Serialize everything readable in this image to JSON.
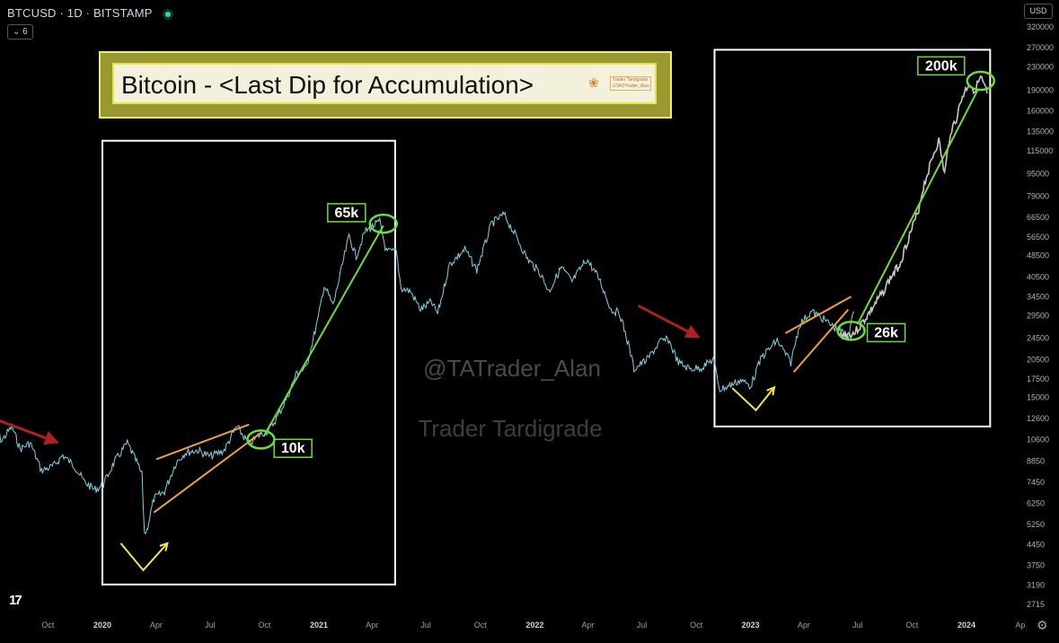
{
  "header": {
    "symbol_line": "BTCUSD · 1D · BITSTAMP",
    "indicators_count": "6",
    "currency": "USD"
  },
  "title": {
    "text": "Bitcoin - <Last Dip for Accumulation>",
    "brand_name": "Trader Tardigrade",
    "brand_tagline": "UTAOTrader_Alan"
  },
  "watermarks": {
    "handle": "@TATrader_Alan",
    "name": "Trader Tardigrade"
  },
  "labels": {
    "l65k": "65k",
    "l10k": "10k",
    "l200k": "200k",
    "l26k": "26k"
  },
  "colors": {
    "background": "#000000",
    "price_line": "#7fd4e6",
    "projection": "#c8c8c8",
    "green": "#6fdc3c",
    "orange": "#f0a040",
    "yellow": "#f4e44a",
    "red_arrow": "#b02020",
    "box": "#ffffff"
  },
  "chart_data": {
    "type": "line",
    "symbol": "BTCUSD",
    "interval": "1D",
    "exchange": "BITSTAMP",
    "y_scale": "log",
    "ylim": [
      2715,
      320000
    ],
    "y_ticks": [
      2715,
      3190,
      3750,
      4450,
      5250,
      6250,
      7450,
      8850,
      10600,
      12600,
      15000,
      17500,
      20500,
      24500,
      29500,
      34500,
      40500,
      48500,
      56500,
      66500,
      79000,
      95000,
      115000,
      135000,
      160000,
      190000,
      230000,
      270000,
      320000
    ],
    "x_ticks": [
      {
        "date": "2019-10-01",
        "label": "Oct"
      },
      {
        "date": "2020-01-01",
        "label": "2020"
      },
      {
        "date": "2020-04-01",
        "label": "Apr"
      },
      {
        "date": "2020-07-01",
        "label": "Jul"
      },
      {
        "date": "2020-10-01",
        "label": "Oct"
      },
      {
        "date": "2021-01-01",
        "label": "2021"
      },
      {
        "date": "2021-04-01",
        "label": "Apr"
      },
      {
        "date": "2021-07-01",
        "label": "Jul"
      },
      {
        "date": "2021-10-01",
        "label": "Oct"
      },
      {
        "date": "2022-01-01",
        "label": "2022"
      },
      {
        "date": "2022-04-01",
        "label": "Apr"
      },
      {
        "date": "2022-07-01",
        "label": "Jul"
      },
      {
        "date": "2022-10-01",
        "label": "Oct"
      },
      {
        "date": "2023-01-01",
        "label": "2023"
      },
      {
        "date": "2023-04-01",
        "label": "Apr"
      },
      {
        "date": "2023-07-01",
        "label": "Jul"
      },
      {
        "date": "2023-10-01",
        "label": "Oct"
      },
      {
        "date": "2024-01-01",
        "label": "2024"
      },
      {
        "date": "2024-04-01",
        "label": "Ap"
      }
    ],
    "price_series": {
      "name": "BTCUSD",
      "x": [
        "2019-07-01",
        "2019-07-15",
        "2019-08-01",
        "2019-08-15",
        "2019-09-01",
        "2019-09-20",
        "2019-10-10",
        "2019-10-26",
        "2019-11-15",
        "2019-12-01",
        "2019-12-18",
        "2020-01-01",
        "2020-01-20",
        "2020-02-12",
        "2020-02-28",
        "2020-03-08",
        "2020-03-12",
        "2020-03-16",
        "2020-03-28",
        "2020-04-15",
        "2020-05-05",
        "2020-05-20",
        "2020-06-10",
        "2020-07-01",
        "2020-07-25",
        "2020-08-15",
        "2020-09-05",
        "2020-09-20",
        "2020-10-10",
        "2020-10-25",
        "2020-11-10",
        "2020-11-25",
        "2020-12-10",
        "2020-12-31",
        "2021-01-10",
        "2021-01-25",
        "2021-02-10",
        "2021-02-21",
        "2021-03-05",
        "2021-03-20",
        "2021-04-14",
        "2021-04-25",
        "2021-05-12",
        "2021-05-20",
        "2021-06-05",
        "2021-06-22",
        "2021-07-10",
        "2021-07-21",
        "2021-08-10",
        "2021-09-05",
        "2021-09-25",
        "2021-10-20",
        "2021-11-10",
        "2021-11-30",
        "2021-12-20",
        "2022-01-10",
        "2022-01-25",
        "2022-02-15",
        "2022-03-05",
        "2022-03-30",
        "2022-04-20",
        "2022-05-10",
        "2022-05-25",
        "2022-06-10",
        "2022-06-18",
        "2022-07-10",
        "2022-08-01",
        "2022-08-15",
        "2022-09-01",
        "2022-09-20",
        "2022-10-10",
        "2022-10-30",
        "2022-11-10",
        "2022-11-25",
        "2022-12-15",
        "2023-01-01",
        "2023-01-20",
        "2023-02-15",
        "2023-03-10",
        "2023-03-25",
        "2023-04-14",
        "2023-05-01",
        "2023-05-25",
        "2023-06-15",
        "2023-06-25"
      ],
      "y": [
        11500,
        10500,
        11800,
        9800,
        10300,
        8200,
        8500,
        9300,
        8500,
        7500,
        7000,
        7200,
        8700,
        10300,
        8800,
        7900,
        4900,
        5000,
        6500,
        6900,
        8800,
        9500,
        9700,
        9200,
        9700,
        11800,
        10200,
        10900,
        11500,
        13000,
        15300,
        18500,
        19000,
        28900,
        38000,
        32000,
        45000,
        57000,
        48000,
        59000,
        64000,
        50000,
        50000,
        37000,
        36000,
        31000,
        33000,
        30000,
        45000,
        51000,
        43000,
        63000,
        68000,
        57000,
        47000,
        42000,
        36000,
        44000,
        39000,
        47000,
        40000,
        31000,
        30000,
        22500,
        19000,
        20500,
        23800,
        24200,
        20000,
        19000,
        19200,
        20600,
        16000,
        16500,
        17300,
        16500,
        21000,
        24000,
        20000,
        27500,
        30500,
        29000,
        26500,
        25000,
        30500
      ]
    },
    "projection_series": {
      "name": "Projection",
      "x": [
        "2023-06-01",
        "2023-06-25",
        "2023-07-05",
        "2023-07-20",
        "2023-08-10",
        "2023-08-25",
        "2023-09-10",
        "2023-09-25",
        "2023-10-10",
        "2023-10-20",
        "2023-11-05",
        "2023-11-15",
        "2023-11-25",
        "2023-12-05",
        "2023-12-15",
        "2023-12-25",
        "2024-01-05",
        "2024-01-15",
        "2024-01-25",
        "2024-02-05"
      ],
      "y": [
        25000,
        25500,
        27000,
        30000,
        35000,
        40000,
        45000,
        56000,
        68000,
        85000,
        110000,
        125000,
        95000,
        135000,
        150000,
        180000,
        200000,
        190000,
        210000,
        185000
      ]
    },
    "boxes": [
      {
        "from": "2020-01-01",
        "to": "2021-05-10",
        "price_top": 125000,
        "price_bottom": 3200
      },
      {
        "from": "2022-11-01",
        "to": "2024-02-10",
        "price_top": 265000,
        "price_bottom": 11800
      }
    ],
    "annotations": [
      {
        "type": "label",
        "text": "65k",
        "date": "2021-04-14",
        "price": 65000
      },
      {
        "type": "label",
        "text": "10k",
        "date": "2020-09-20",
        "price": 10000
      },
      {
        "type": "label",
        "text": "200k",
        "date": "2024-01-25",
        "price": 200000
      },
      {
        "type": "label",
        "text": "26k",
        "date": "2023-06-20",
        "price": 26000
      },
      {
        "type": "trendline",
        "color": "green",
        "from": {
          "date": "2020-10-01",
          "price": 11000
        },
        "to": {
          "date": "2021-04-20",
          "price": 62000
        }
      },
      {
        "type": "trendline",
        "color": "green",
        "from": {
          "date": "2023-07-01",
          "price": 27500
        },
        "to": {
          "date": "2024-01-20",
          "price": 190000
        }
      },
      {
        "type": "trendline",
        "color": "orange",
        "from": {
          "date": "2020-04-01",
          "price": 9000
        },
        "to": {
          "date": "2020-09-05",
          "price": 12000
        }
      },
      {
        "type": "trendline",
        "color": "orange",
        "from": {
          "date": "2020-03-28",
          "price": 5800
        },
        "to": {
          "date": "2020-09-25",
          "price": 11200
        }
      },
      {
        "type": "trendline",
        "color": "orange",
        "from": {
          "date": "2023-03-01",
          "price": 25500
        },
        "to": {
          "date": "2023-06-20",
          "price": 34500
        }
      },
      {
        "type": "trendline",
        "color": "orange",
        "from": {
          "date": "2023-03-15",
          "price": 18500
        },
        "to": {
          "date": "2023-06-15",
          "price": 31000
        }
      },
      {
        "type": "v-mark",
        "color": "yellow",
        "points": [
          {
            "date": "2020-02-01",
            "price": 4500
          },
          {
            "date": "2020-03-10",
            "price": 3600
          },
          {
            "date": "2020-04-20",
            "price": 4500
          }
        ]
      },
      {
        "type": "v-mark",
        "color": "yellow",
        "points": [
          {
            "date": "2022-12-01",
            "price": 16200
          },
          {
            "date": "2023-01-10",
            "price": 13500
          },
          {
            "date": "2023-02-10",
            "price": 16300
          }
        ]
      },
      {
        "type": "arrow",
        "color": "red",
        "from": {
          "date": "2019-07-01",
          "price": 12600
        },
        "to": {
          "date": "2019-10-20",
          "price": 10300
        }
      },
      {
        "type": "arrow",
        "color": "red",
        "from": {
          "date": "2022-06-25",
          "price": 32000
        },
        "to": {
          "date": "2022-10-08",
          "price": 24500
        }
      },
      {
        "type": "ellipse",
        "color": "green",
        "date": "2021-04-20",
        "price": 63000
      },
      {
        "type": "ellipse",
        "color": "green",
        "date": "2020-09-25",
        "price": 10600
      },
      {
        "type": "ellipse",
        "color": "green",
        "date": "2024-01-25",
        "price": 205000
      },
      {
        "type": "ellipse",
        "color": "green",
        "date": "2023-06-20",
        "price": 26000
      }
    ]
  }
}
